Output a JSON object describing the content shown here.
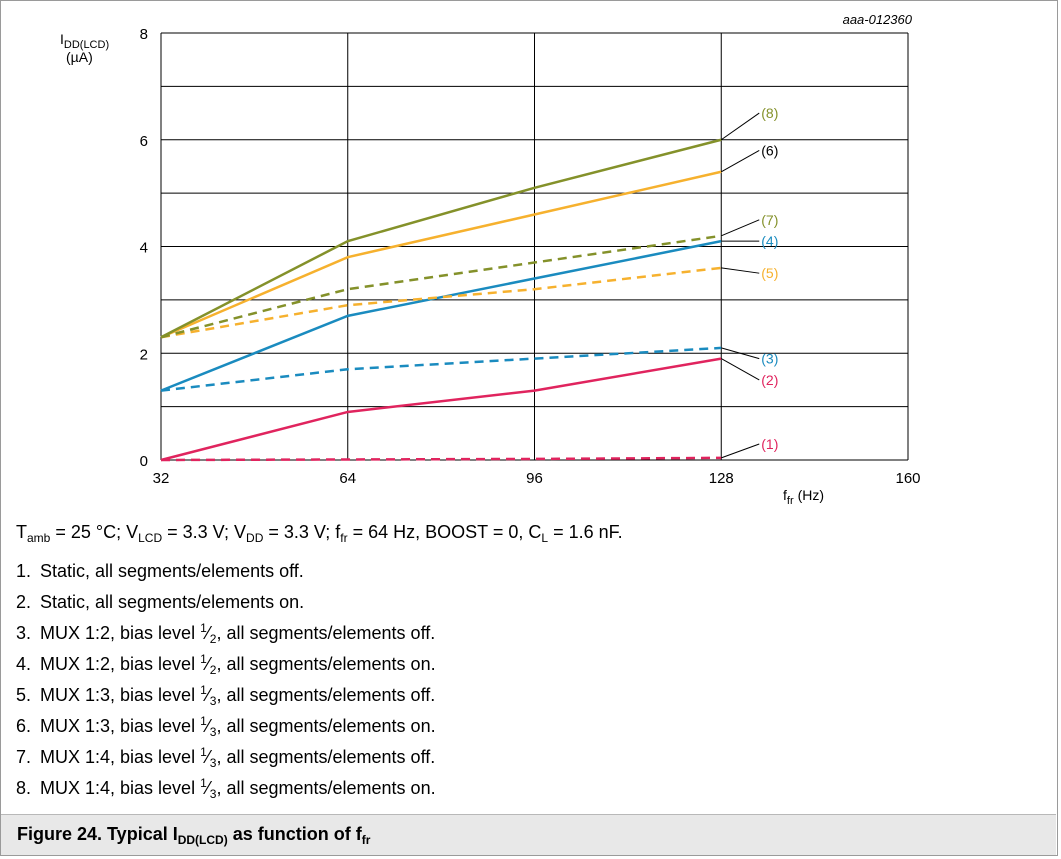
{
  "chart_data": {
    "type": "line",
    "figure_id": "aaa-012360",
    "ylabel_main": "I",
    "ylabel_sub": "DD(LCD)",
    "ylabel_unit": "(µA)",
    "xlabel_main": "f",
    "xlabel_sub": "fr",
    "xlabel_unit": "(Hz)",
    "xlim": [
      32,
      160
    ],
    "ylim": [
      0,
      8
    ],
    "x_ticks": [
      32,
      64,
      96,
      128,
      160
    ],
    "y_ticks": [
      0,
      2,
      4,
      6,
      8
    ],
    "grid": true,
    "series": [
      {
        "name": "(1)",
        "style": "dashed",
        "color": "#e0245e",
        "x": [
          32,
          64,
          96,
          128
        ],
        "y": [
          0.0,
          0.01,
          0.02,
          0.04
        ]
      },
      {
        "name": "(2)",
        "style": "solid",
        "color": "#e0245e",
        "x": [
          32,
          64,
          96,
          128
        ],
        "y": [
          0.0,
          0.9,
          1.3,
          1.9
        ]
      },
      {
        "name": "(3)",
        "style": "dashed",
        "color": "#1a8bbf",
        "x": [
          32,
          64,
          96,
          128
        ],
        "y": [
          1.3,
          1.7,
          1.9,
          2.1
        ]
      },
      {
        "name": "(4)",
        "style": "solid",
        "color": "#1a8bbf",
        "x": [
          32,
          64,
          96,
          128
        ],
        "y": [
          1.3,
          2.7,
          3.4,
          4.1
        ]
      },
      {
        "name": "(5)",
        "style": "dashed",
        "color": "#f6b12e",
        "x": [
          32,
          64,
          96,
          128
        ],
        "y": [
          2.3,
          2.9,
          3.2,
          3.6
        ]
      },
      {
        "name": "(6)",
        "style": "solid",
        "color": "#f6b12e",
        "x": [
          32,
          64,
          96,
          128
        ],
        "y": [
          2.3,
          3.8,
          4.6,
          5.4
        ]
      },
      {
        "name": "(7)",
        "style": "dashed",
        "color": "#84912a",
        "x": [
          32,
          64,
          96,
          128
        ],
        "y": [
          2.3,
          3.2,
          3.7,
          4.2
        ]
      },
      {
        "name": "(8)",
        "style": "solid",
        "color": "#84912a",
        "x": [
          32,
          64,
          96,
          128
        ],
        "y": [
          2.3,
          4.1,
          5.1,
          6.0
        ]
      }
    ],
    "callouts": [
      {
        "label": "(8)",
        "color": "#84912a",
        "x": 128,
        "y": 6.0,
        "text_y": 6.5
      },
      {
        "label": "(6)",
        "color": "#000000",
        "x": 128,
        "y": 5.4,
        "text_y": 5.8
      },
      {
        "label": "(7)",
        "color": "#84912a",
        "x": 128,
        "y": 4.2,
        "text_y": 4.5
      },
      {
        "label": "(4)",
        "color": "#1a8bbf",
        "x": 128,
        "y": 4.1,
        "text_y": 4.1
      },
      {
        "label": "(5)",
        "color": "#f6b12e",
        "x": 128,
        "y": 3.6,
        "text_y": 3.5
      },
      {
        "label": "(3)",
        "color": "#1a8bbf",
        "x": 128,
        "y": 2.1,
        "text_y": 1.9
      },
      {
        "label": "(2)",
        "color": "#e0245e",
        "x": 128,
        "y": 1.9,
        "text_y": 1.5
      },
      {
        "label": "(1)",
        "color": "#e0245e",
        "x": 128,
        "y": 0.04,
        "text_y": 0.3
      }
    ]
  },
  "conditions": {
    "t_main": "T",
    "t_sub": "amb",
    "t_val": " = 25 °C; ",
    "vlcd_main": "V",
    "vlcd_sub": "LCD",
    "vlcd_val": " = 3.3 V; ",
    "vdd_main": "V",
    "vdd_sub": "DD",
    "vdd_val": " = 3.3 V; ",
    "ffr_main": "f",
    "ffr_sub": "fr",
    "ffr_val": " = 64 Hz, BOOST = 0, ",
    "cl_main": "C",
    "cl_sub": "L",
    "cl_val": " = 1.6 nF."
  },
  "notes": [
    {
      "num": "1.",
      "pre": "Static, all segments/elements off.",
      "sup": "",
      "sub": "",
      "post": ""
    },
    {
      "num": "2.",
      "pre": "Static, all segments/elements on.",
      "sup": "",
      "sub": "",
      "post": ""
    },
    {
      "num": "3.",
      "pre": "MUX 1:2, bias level ",
      "sup": "1",
      "sub": "2",
      "post": ", all segments/elements off."
    },
    {
      "num": "4.",
      "pre": "MUX 1:2, bias level ",
      "sup": "1",
      "sub": "2",
      "post": ", all segments/elements on."
    },
    {
      "num": "5.",
      "pre": "MUX 1:3, bias level ",
      "sup": "1",
      "sub": "3",
      "post": ", all segments/elements off."
    },
    {
      "num": "6.",
      "pre": "MUX 1:3, bias level ",
      "sup": "1",
      "sub": "3",
      "post": ", all segments/elements on."
    },
    {
      "num": "7.",
      "pre": "MUX 1:4, bias level ",
      "sup": "1",
      "sub": "3",
      "post": ", all segments/elements off."
    },
    {
      "num": "8.",
      "pre": "MUX 1:4, bias level ",
      "sup": "1",
      "sub": "3",
      "post": ", all segments/elements on."
    }
  ],
  "caption": {
    "prefix": "Figure 24.  Typical I",
    "sub1": "DD(LCD)",
    "middle": " as function of f",
    "sub2": "fr"
  }
}
